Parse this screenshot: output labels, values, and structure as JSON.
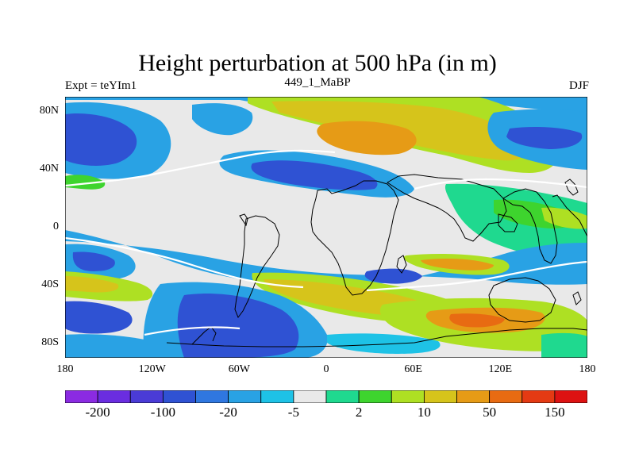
{
  "title": "Height perturbation at 500 hPa (in m)",
  "subtitle": {
    "left": "Expt = teYIm1",
    "center": "449_1_MaBP",
    "right": "DJF"
  },
  "lat_labels": [
    "80N",
    "40N",
    "0",
    "40S",
    "80S"
  ],
  "lon_labels": [
    "180",
    "120W",
    "60W",
    "0",
    "60E",
    "120E",
    "180"
  ],
  "colorbar": {
    "colors": [
      "#8b2be2",
      "#6a2de0",
      "#4a3bd6",
      "#2f52d3",
      "#2f77e0",
      "#29a2e4",
      "#1ec2e6",
      "#e9e9e9",
      "#1fd98f",
      "#3ed42e",
      "#aee023",
      "#d6c41b",
      "#e69b16",
      "#e86b12",
      "#e43a13",
      "#dd1212"
    ],
    "labels": [
      "-200",
      "-100",
      "-20",
      "-5",
      "2",
      "10",
      "50",
      "150"
    ]
  },
  "fill_colors": {
    "neutral": "#e9e9e9",
    "weak_negative": "#1ec2e6",
    "negative": "#29a2e4",
    "strong_negative": "#2f52d3",
    "weak_positive": "#1fd98f",
    "positive": "#aee023",
    "strong_positive": "#e69b16"
  }
}
